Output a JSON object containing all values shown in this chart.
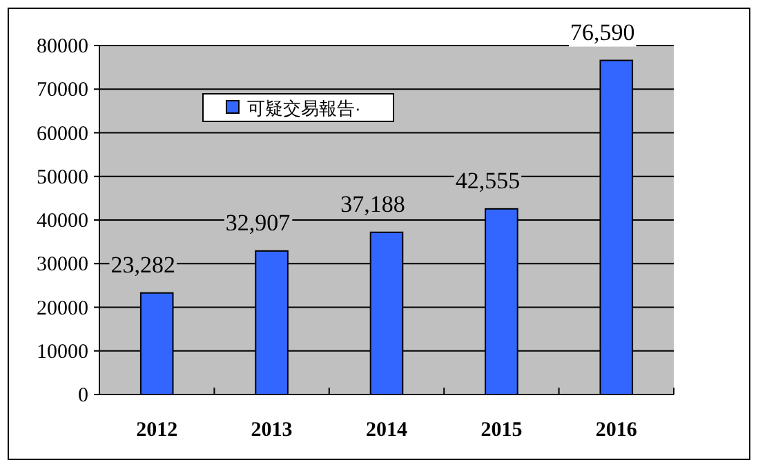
{
  "chart_data": {
    "type": "bar",
    "categories": [
      "2012",
      "2013",
      "2014",
      "2015",
      "2016"
    ],
    "series": [
      {
        "name": "可疑交易報告·",
        "color": "#3366ff",
        "values": [
          23282,
          32907,
          37188,
          42555,
          76590
        ],
        "value_labels": [
          "23,282",
          "32,907",
          "37,188",
          "42,555",
          "76,590"
        ]
      }
    ],
    "ylim": [
      0,
      80000
    ],
    "yticks": [
      0,
      10000,
      20000,
      30000,
      40000,
      50000,
      60000,
      70000,
      80000
    ],
    "grid": "y",
    "legend": "top left"
  }
}
